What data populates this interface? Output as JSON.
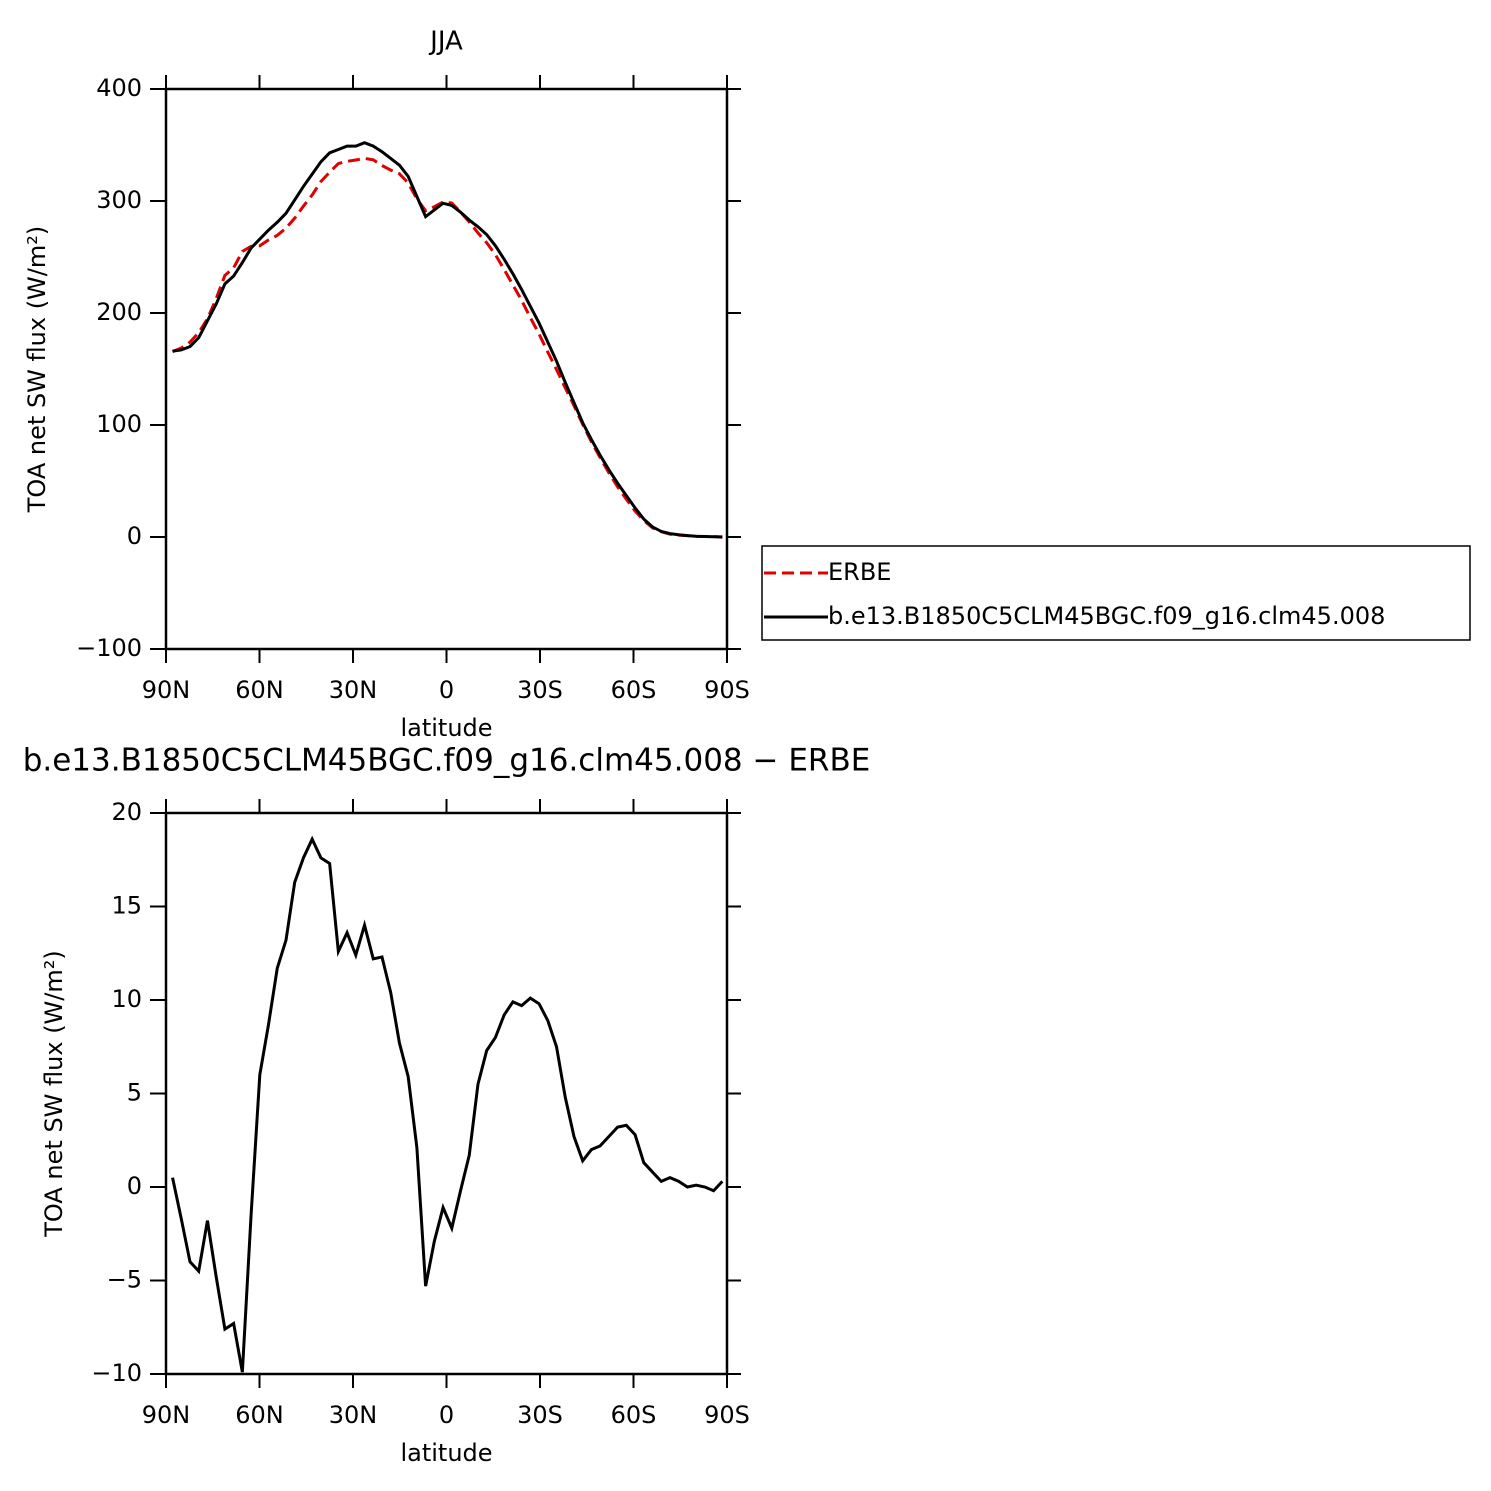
{
  "chart_data": [
    {
      "type": "line",
      "title": "JJA",
      "xlabel": "latitude",
      "ylabel": "TOA net SW flux (W/m²)",
      "legend": "right",
      "x": [
        87.9,
        85.1,
        82.3,
        79.5,
        76.7,
        73.9,
        71.1,
        68.3,
        65.5,
        62.7,
        59.9,
        57.1,
        54.3,
        51.5,
        48.7,
        45.9,
        43.1,
        40.3,
        37.5,
        34.7,
        31.9,
        29.1,
        26.3,
        23.5,
        20.7,
        17.9,
        15.1,
        12.3,
        9.5,
        6.7,
        3.9,
        1.1,
        -1.7,
        -4.5,
        -7.3,
        -10.1,
        -12.9,
        -15.7,
        -18.5,
        -21.3,
        -24.1,
        -26.9,
        -29.7,
        -32.5,
        -35.3,
        -38.1,
        -40.9,
        -43.7,
        -46.5,
        -49.3,
        -52.1,
        -54.9,
        -57.7,
        -60.5,
        -63.3,
        -66.1,
        -68.9,
        -71.7,
        -74.5,
        -77.3,
        -80.1,
        -82.9,
        -85.7,
        -88.5
      ],
      "series": [
        {
          "name": "ERBE",
          "color": "#e00000",
          "dash": "dashed",
          "values": [
            165.5,
            168.7,
            174,
            182.5,
            194.8,
            212.8,
            233.6,
            240.3,
            254.9,
            259.5,
            260,
            265.3,
            269.3,
            275.8,
            284.7,
            295.4,
            305.4,
            317.4,
            325.7,
            333.4,
            335.4,
            336.6,
            338,
            336.8,
            331.7,
            327.6,
            324.3,
            316.1,
            301.9,
            291.3,
            294.9,
            299.1,
            298.2,
            290.2,
            281.3,
            271.5,
            262.7,
            252,
            238.8,
            225.1,
            211.3,
            195.9,
            181.2,
            165.1,
            149.5,
            133.2,
            117.3,
            100.6,
            85,
            70.8,
            57.3,
            44.8,
            33.7,
            23.2,
            14.7,
            8.2,
            4.7,
            2.5,
            1.7,
            1.2,
            0.6,
            0.4,
            0.4,
            -0.2
          ]
        },
        {
          "name": "b.e13.B1850C5CLM45BGC.f09_g16.clm45.008",
          "color": "#000000",
          "dash": "solid",
          "values": [
            166,
            167,
            170,
            178,
            193,
            208,
            226,
            233,
            245,
            258,
            266,
            274,
            281,
            289,
            301,
            313,
            324,
            335,
            343,
            346,
            349,
            349,
            352,
            349,
            344,
            338,
            332,
            322,
            304,
            286,
            292,
            298,
            296,
            290,
            283,
            277,
            270,
            260,
            248,
            235,
            221,
            206,
            191,
            174,
            157,
            138,
            120,
            102,
            87,
            73,
            60,
            48,
            37,
            26,
            16,
            9,
            5,
            3,
            2,
            1.2,
            0.7,
            0.4,
            0.2,
            0.1
          ]
        }
      ],
      "xlim": [
        90,
        -90
      ],
      "xticks": [
        {
          "value": 90,
          "label": "90N"
        },
        {
          "value": 60,
          "label": "60N"
        },
        {
          "value": 30,
          "label": "30N"
        },
        0,
        {
          "value": -30,
          "label": "30S"
        },
        {
          "value": -60,
          "label": "60S"
        },
        {
          "value": -90,
          "label": "90S"
        }
      ],
      "ylim": [
        -100,
        400
      ],
      "yticks": [
        {
          "value": -100,
          "label": "−100"
        },
        0,
        100,
        200,
        300,
        400
      ]
    },
    {
      "type": "line",
      "title": "b.e13.B1850C5CLM45BGC.f09_g16.clm45.008 − ERBE",
      "xlabel": "latitude",
      "ylabel": "TOA net SW flux (W/m²)",
      "x": [
        87.9,
        85.1,
        82.3,
        79.5,
        76.7,
        73.9,
        71.1,
        68.3,
        65.5,
        62.7,
        59.9,
        57.1,
        54.3,
        51.5,
        48.7,
        45.9,
        43.1,
        40.3,
        37.5,
        34.7,
        31.9,
        29.1,
        26.3,
        23.5,
        20.7,
        17.9,
        15.1,
        12.3,
        9.5,
        6.7,
        3.9,
        1.1,
        -1.7,
        -4.5,
        -7.3,
        -10.1,
        -12.9,
        -15.7,
        -18.5,
        -21.3,
        -24.1,
        -26.9,
        -29.7,
        -32.5,
        -35.3,
        -38.1,
        -40.9,
        -43.7,
        -46.5,
        -49.3,
        -52.1,
        -54.9,
        -57.7,
        -60.5,
        -63.3,
        -66.1,
        -68.9,
        -71.7,
        -74.5,
        -77.3,
        -80.1,
        -82.9,
        -85.7,
        -88.5
      ],
      "series": [
        {
          "color": "#000000",
          "dash": "solid",
          "values": [
            0.5,
            -1.7,
            -4.0,
            -4.5,
            -1.8,
            -4.8,
            -7.6,
            -7.3,
            -9.9,
            -1.5,
            6.0,
            8.7,
            11.7,
            13.2,
            16.3,
            17.6,
            18.6,
            17.6,
            17.3,
            12.6,
            13.6,
            12.4,
            14.0,
            12.2,
            12.3,
            10.4,
            7.7,
            5.9,
            2.1,
            -5.3,
            -2.9,
            -1.1,
            -2.2,
            -0.2,
            1.7,
            5.5,
            7.3,
            8.0,
            9.2,
            9.9,
            9.7,
            10.1,
            9.8,
            8.9,
            7.5,
            4.8,
            2.7,
            1.4,
            2.0,
            2.2,
            2.7,
            3.2,
            3.3,
            2.8,
            1.3,
            0.8,
            0.3,
            0.5,
            0.3,
            0.0,
            0.1,
            0.0,
            -0.2,
            0.3
          ]
        }
      ],
      "xlim": [
        90,
        -90
      ],
      "xticks": [
        {
          "value": 90,
          "label": "90N"
        },
        {
          "value": 60,
          "label": "60N"
        },
        {
          "value": 30,
          "label": "30N"
        },
        0,
        {
          "value": -30,
          "label": "30S"
        },
        {
          "value": -60,
          "label": "60S"
        },
        {
          "value": -90,
          "label": "90S"
        }
      ],
      "ylim": [
        -10,
        20
      ],
      "yticks": [
        {
          "value": -10,
          "label": "−10"
        },
        {
          "value": -5,
          "label": "−5"
        },
        0,
        5,
        10,
        15,
        20
      ]
    }
  ]
}
